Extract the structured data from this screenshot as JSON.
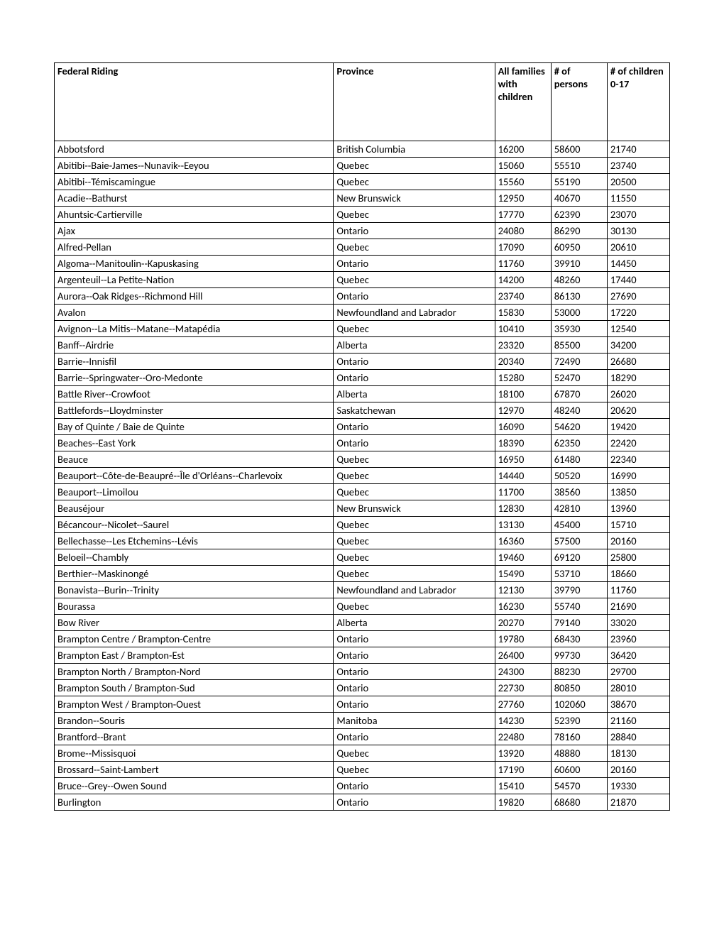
{
  "table": {
    "headers": [
      "Federal Riding",
      "Province",
      "All families with children",
      "# of persons",
      "# of children 0-17"
    ],
    "col_widths": [
      "348px",
      "201px",
      "70px",
      "70px",
      "78px"
    ],
    "rows": [
      [
        "Abbotsford",
        "British Columbia",
        "16200",
        "58600",
        "21740"
      ],
      [
        "Abitibi--Baie-James--Nunavik--Eeyou",
        "Quebec",
        "15060",
        "55510",
        "23740"
      ],
      [
        "Abitibi--Témiscamingue",
        "Quebec",
        "15560",
        "55190",
        "20500"
      ],
      [
        "Acadie--Bathurst",
        "New Brunswick",
        "12950",
        "40670",
        "11550"
      ],
      [
        "Ahuntsic-Cartierville",
        "Quebec",
        "17770",
        "62390",
        "23070"
      ],
      [
        "Ajax",
        "Ontario",
        "24080",
        "86290",
        "30130"
      ],
      [
        "Alfred-Pellan",
        "Quebec",
        "17090",
        "60950",
        "20610"
      ],
      [
        "Algoma--Manitoulin--Kapuskasing",
        "Ontario",
        "11760",
        "39910",
        "14450"
      ],
      [
        "Argenteuil--La Petite-Nation",
        "Quebec",
        "14200",
        "48260",
        "17440"
      ],
      [
        "Aurora--Oak Ridges--Richmond Hill",
        "Ontario",
        "23740",
        "86130",
        "27690"
      ],
      [
        "Avalon",
        "Newfoundland and Labrador",
        "15830",
        "53000",
        "17220"
      ],
      [
        "Avignon--La Mitis--Matane--Matapédia",
        "Quebec",
        "10410",
        "35930",
        "12540"
      ],
      [
        "Banff--Airdrie",
        "Alberta",
        "23320",
        "85500",
        "34200"
      ],
      [
        "Barrie--Innisfil",
        "Ontario",
        "20340",
        "72490",
        "26680"
      ],
      [
        "Barrie--Springwater--Oro-Medonte",
        "Ontario",
        "15280",
        "52470",
        "18290"
      ],
      [
        "Battle River--Crowfoot",
        "Alberta",
        "18100",
        "67870",
        "26020"
      ],
      [
        "Battlefords--Lloydminster",
        "Saskatchewan",
        "12970",
        "48240",
        "20620"
      ],
      [
        "Bay of Quinte / Baie de Quinte",
        "Ontario",
        "16090",
        "54620",
        "19420"
      ],
      [
        "Beaches--East York",
        "Ontario",
        "18390",
        "62350",
        "22420"
      ],
      [
        "Beauce",
        "Quebec",
        "16950",
        "61480",
        "22340"
      ],
      [
        "Beauport--Côte-de-Beaupré--Île d'Orléans--Charlevoix",
        "Quebec",
        "14440",
        "50520",
        "16990"
      ],
      [
        "Beauport--Limoilou",
        "Quebec",
        "11700",
        "38560",
        "13850"
      ],
      [
        "Beauséjour",
        "New Brunswick",
        "12830",
        "42810",
        "13960"
      ],
      [
        "Bécancour--Nicolet--Saurel",
        "Quebec",
        "13130",
        "45400",
        "15710"
      ],
      [
        "Bellechasse--Les Etchemins--Lévis",
        "Quebec",
        "16360",
        "57500",
        "20160"
      ],
      [
        "Beloeil--Chambly",
        "Quebec",
        "19460",
        "69120",
        "25800"
      ],
      [
        "Berthier--Maskinongé",
        "Quebec",
        "15490",
        "53710",
        "18660"
      ],
      [
        "Bonavista--Burin--Trinity",
        "Newfoundland and Labrador",
        "12130",
        "39790",
        "11760"
      ],
      [
        "Bourassa",
        "Quebec",
        "16230",
        "55740",
        "21690"
      ],
      [
        "Bow River",
        "Alberta",
        "20270",
        "79140",
        "33020"
      ],
      [
        "Brampton Centre / Brampton-Centre",
        "Ontario",
        "19780",
        "68430",
        "23960"
      ],
      [
        "Brampton East / Brampton-Est",
        "Ontario",
        "26400",
        "99730",
        "36420"
      ],
      [
        "Brampton North / Brampton-Nord",
        "Ontario",
        "24300",
        "88230",
        "29700"
      ],
      [
        "Brampton South / Brampton-Sud",
        "Ontario",
        "22730",
        "80850",
        "28010"
      ],
      [
        "Brampton West / Brampton-Ouest",
        "Ontario",
        "27760",
        "102060",
        "38670"
      ],
      [
        "Brandon--Souris",
        "Manitoba",
        "14230",
        "52390",
        "21160"
      ],
      [
        "Brantford--Brant",
        "Ontario",
        "22480",
        "78160",
        "28840"
      ],
      [
        "Brome--Missisquoi",
        "Quebec",
        "13920",
        "48880",
        "18130"
      ],
      [
        "Brossard--Saint-Lambert",
        "Quebec",
        "17190",
        "60600",
        "20160"
      ],
      [
        "Bruce--Grey--Owen Sound",
        "Ontario",
        "15410",
        "54570",
        "19330"
      ],
      [
        "Burlington",
        "Ontario",
        "19820",
        "68680",
        "21870"
      ]
    ]
  }
}
